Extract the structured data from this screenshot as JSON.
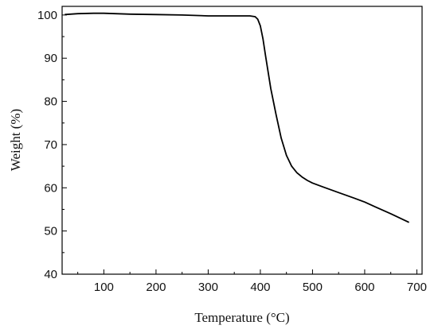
{
  "chart_data": {
    "type": "line",
    "xlabel": "Temperature (°C)",
    "ylabel": "Weight (%)",
    "xlim": [
      20,
      710
    ],
    "ylim": [
      40,
      102
    ],
    "xticks": [
      100,
      200,
      300,
      400,
      500,
      600,
      700
    ],
    "yticks": [
      40,
      50,
      60,
      70,
      80,
      90,
      100
    ],
    "grid": false,
    "line_color": "#000000",
    "series": [
      {
        "x": [
          25,
          50,
          80,
          100,
          150,
          200,
          250,
          300,
          350,
          380,
          390,
          395,
          400,
          405,
          410,
          420,
          430,
          440,
          450,
          460,
          470,
          480,
          490,
          500,
          520,
          550,
          580,
          600,
          620,
          650,
          685
        ],
        "y": [
          100.1,
          100.3,
          100.4,
          100.4,
          100.2,
          100.1,
          100.0,
          99.8,
          99.8,
          99.8,
          99.6,
          99.0,
          97.5,
          94.5,
          90.5,
          83.0,
          77.0,
          71.5,
          67.5,
          65.0,
          63.5,
          62.5,
          61.7,
          61.1,
          60.2,
          58.9,
          57.6,
          56.7,
          55.6,
          54.0,
          52.0
        ]
      }
    ]
  }
}
